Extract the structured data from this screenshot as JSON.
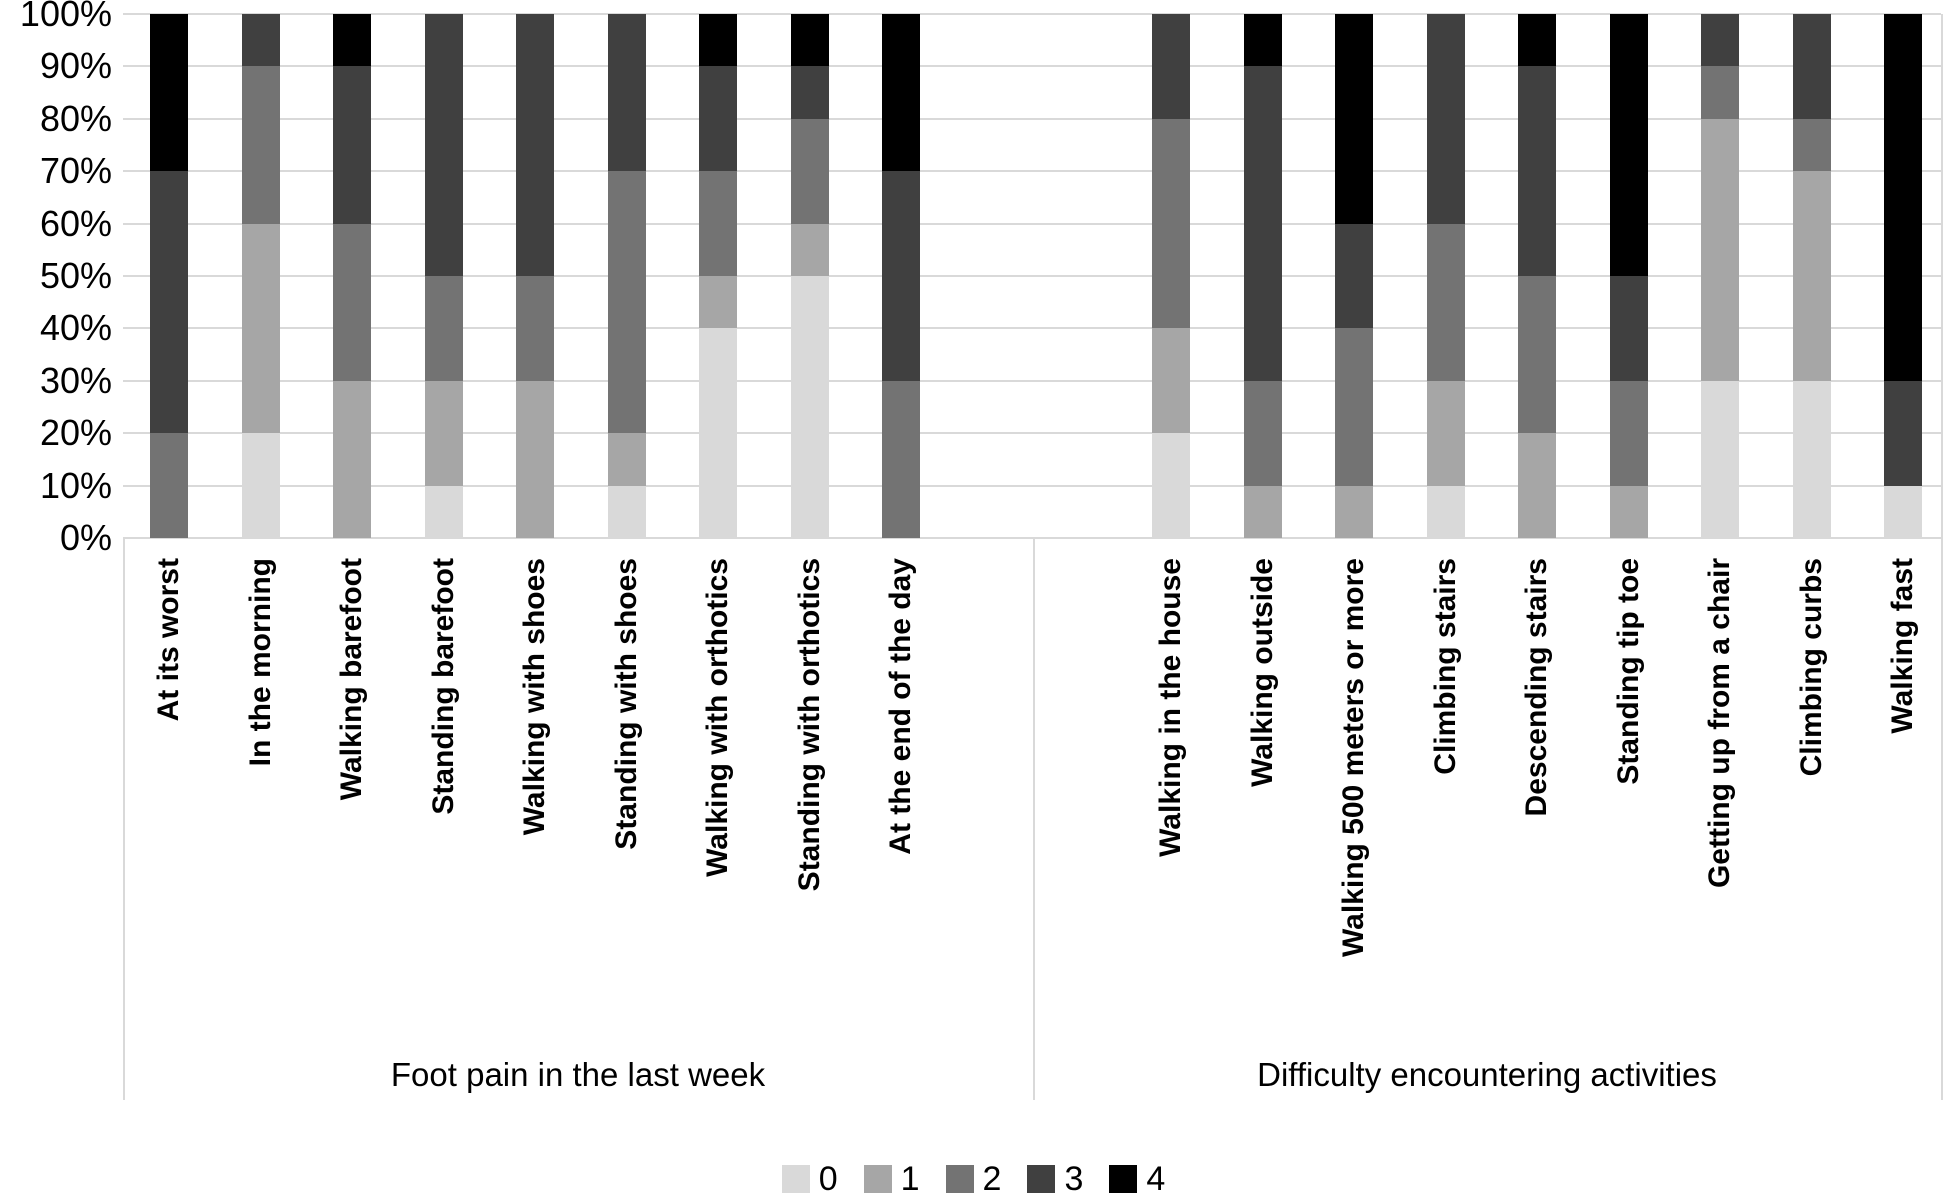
{
  "chart_data": {
    "type": "bar",
    "variant": "stacked-100-percent",
    "title": "",
    "xlabel": "",
    "ylabel": "",
    "grid": true,
    "y_axis": {
      "min": 0,
      "max": 100,
      "step": 10,
      "ticks_top_to_bottom": [
        "100%",
        "90%",
        "80%",
        "70%",
        "60%",
        "50%",
        "40%",
        "30%",
        "20%",
        "10%",
        "0%"
      ]
    },
    "legend": {
      "position": "bottom",
      "entries": [
        {
          "label": "0",
          "color": "#d9d9d9"
        },
        {
          "label": "1",
          "color": "#a6a6a6"
        },
        {
          "label": "2",
          "color": "#737373"
        },
        {
          "label": "3",
          "color": "#404040"
        },
        {
          "label": "4",
          "color": "#000000"
        }
      ]
    },
    "series_order_bottom_to_top": [
      "0",
      "1",
      "2",
      "3",
      "4"
    ],
    "groups": [
      {
        "label": "Foot pain in the last week",
        "categories": [
          "At its worst",
          "In the morning",
          "Walking barefoot",
          "Standing barefoot",
          "Walking with shoes",
          "Standing with shoes",
          "Walking with orthotics",
          "Standing with orthotics",
          "At the end of the day"
        ],
        "values_percent": {
          "0": [
            0,
            20,
            0,
            10,
            0,
            10,
            40,
            50,
            0
          ],
          "1": [
            0,
            40,
            30,
            20,
            30,
            10,
            10,
            10,
            0
          ],
          "2": [
            20,
            30,
            30,
            20,
            20,
            50,
            20,
            20,
            30
          ],
          "3": [
            50,
            10,
            30,
            50,
            50,
            30,
            20,
            10,
            40
          ],
          "4": [
            30,
            0,
            10,
            0,
            0,
            0,
            10,
            10,
            30
          ]
        }
      },
      {
        "label": "Difficulty encountering activities",
        "categories": [
          "Walking in the house",
          "Walking outside",
          "Walking 500 meters or more",
          "Climbing stairs",
          "Descending stairs",
          "Standing tip toe",
          "Getting up from a chair",
          "Climbing curbs",
          "Walking fast"
        ],
        "values_percent": {
          "0": [
            20,
            0,
            0,
            10,
            0,
            0,
            30,
            30,
            10
          ],
          "1": [
            20,
            10,
            10,
            20,
            20,
            10,
            50,
            40,
            0
          ],
          "2": [
            40,
            20,
            30,
            30,
            30,
            20,
            10,
            10,
            0
          ],
          "3": [
            20,
            60,
            20,
            40,
            40,
            20,
            10,
            20,
            20
          ],
          "4": [
            0,
            10,
            40,
            0,
            10,
            50,
            0,
            0,
            70
          ]
        }
      }
    ]
  }
}
